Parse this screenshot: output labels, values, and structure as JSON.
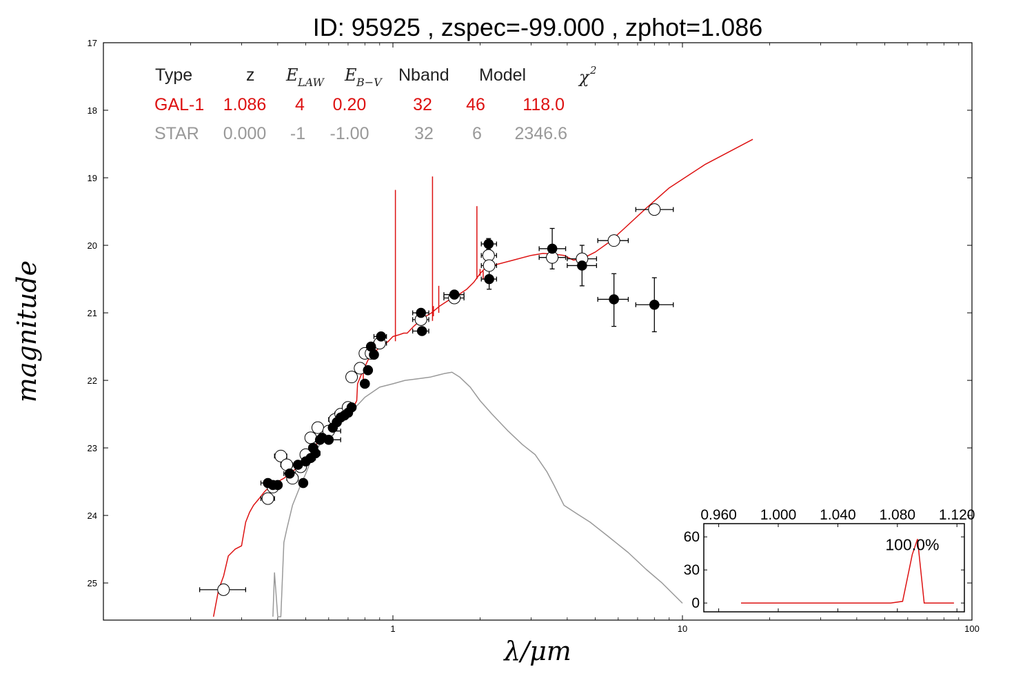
{
  "title": "ID:  95925 , zspec=-99.000 , zphot=1.086",
  "colors": {
    "galaxy": "#dd1111",
    "star": "#999999",
    "axis": "#000000"
  },
  "chart_data": [
    {
      "type": "scatter",
      "x_scale": "log",
      "y_inverted": true,
      "xlabel": "λ/μm",
      "ylabel": "magnitude",
      "xlim": [
        0.1,
        100
      ],
      "ylim": [
        25.55,
        17
      ],
      "x_ticks": [
        {
          "v": 1,
          "label": "1"
        },
        {
          "v": 10,
          "label": "10"
        },
        {
          "v": 100,
          "label": "100"
        }
      ],
      "y_ticks": [
        {
          "v": 17,
          "label": "17"
        },
        {
          "v": 18,
          "label": "18"
        },
        {
          "v": 19,
          "label": "19"
        },
        {
          "v": 20,
          "label": "20"
        },
        {
          "v": 21,
          "label": "21"
        },
        {
          "v": 22,
          "label": "22"
        },
        {
          "v": 23,
          "label": "23"
        },
        {
          "v": 24,
          "label": "24"
        },
        {
          "v": 25,
          "label": "25"
        }
      ],
      "table": {
        "headers": [
          "Type",
          "z",
          "E_LAW",
          "E_B−V",
          "Nband",
          "Model",
          "χ²"
        ],
        "rows": [
          {
            "kind": "galaxy",
            "cells": [
              "GAL-1",
              "1.086",
              "4",
              "0.20",
              "32",
              "46",
              "118.0"
            ]
          },
          {
            "kind": "star",
            "cells": [
              "STAR",
              "0.000",
              "-1",
              "-1.00",
              "32",
              "6",
              "2346.6"
            ]
          }
        ]
      },
      "series": [
        {
          "role": "galaxy-model",
          "style": "line",
          "x": [
            0.24,
            0.25,
            0.26,
            0.27,
            0.285,
            0.3,
            0.31,
            0.32,
            0.33,
            0.345,
            0.36,
            0.37,
            0.38,
            0.4,
            0.42,
            0.45,
            0.48,
            0.5,
            0.53,
            0.56,
            0.6,
            0.64,
            0.68,
            0.72,
            0.75,
            0.755,
            0.78,
            0.82,
            0.85,
            0.88,
            0.92,
            0.96,
            1.0,
            1.04,
            1.09,
            1.12,
            1.18,
            1.24,
            1.3,
            1.36,
            1.45,
            1.55,
            1.62,
            1.7,
            1.8,
            1.9,
            2.0,
            2.1,
            2.3,
            2.6,
            3.0,
            3.3,
            3.6,
            3.9,
            4.2,
            4.5,
            5.0,
            5.6,
            6.3,
            7.5,
            9.0,
            12.0,
            17.5
          ],
          "y": [
            25.5,
            25.1,
            24.9,
            24.6,
            24.5,
            24.45,
            24.1,
            23.95,
            23.85,
            23.75,
            23.65,
            23.6,
            23.55,
            23.5,
            23.45,
            23.35,
            23.25,
            23.15,
            23.0,
            22.88,
            22.75,
            22.62,
            22.5,
            22.45,
            22.3,
            22.05,
            21.9,
            21.7,
            21.6,
            21.55,
            21.47,
            21.43,
            21.35,
            21.33,
            21.3,
            21.3,
            21.2,
            21.12,
            21.05,
            21.0,
            20.9,
            20.82,
            20.78,
            20.72,
            20.65,
            20.55,
            20.42,
            20.32,
            20.28,
            20.22,
            20.15,
            20.12,
            20.13,
            20.15,
            20.22,
            20.2,
            20.1,
            19.95,
            19.75,
            19.45,
            19.15,
            18.8,
            18.43
          ]
        },
        {
          "role": "galaxy-emission-lines",
          "style": "spikes",
          "x": [
            0.79,
            1.02,
            1.27,
            1.37,
            1.38,
            1.44,
            1.95,
            2.0,
            2.05
          ],
          "y_top": [
            21.85,
            19.18,
            21.2,
            18.98,
            20.9,
            20.6,
            19.42,
            20.35,
            20.5
          ],
          "y_base": [
            22.05,
            21.42,
            21.32,
            21.12,
            21.05,
            21.0,
            20.5,
            20.45,
            20.38
          ]
        },
        {
          "role": "star-model",
          "style": "line",
          "x": [
            0.385,
            0.39,
            0.4,
            0.41,
            0.42,
            0.43,
            0.45,
            0.48,
            0.5,
            0.53,
            0.56,
            0.6,
            0.65,
            0.7,
            0.75,
            0.8,
            0.9,
            1.0,
            1.1,
            1.2,
            1.35,
            1.5,
            1.6,
            1.7,
            1.85,
            2.0,
            2.2,
            2.5,
            2.8,
            3.1,
            3.4,
            3.6,
            3.9,
            4.3,
            4.8,
            5.5,
            6.5,
            7.5,
            8.5,
            10.0
          ],
          "y": [
            25.5,
            24.85,
            25.5,
            25.5,
            24.4,
            24.2,
            23.85,
            23.55,
            23.38,
            23.1,
            22.95,
            22.8,
            22.65,
            22.5,
            22.38,
            22.25,
            22.1,
            22.05,
            22.0,
            21.98,
            21.95,
            21.9,
            21.88,
            21.95,
            22.1,
            22.3,
            22.5,
            22.75,
            22.95,
            23.1,
            23.35,
            23.55,
            23.85,
            23.97,
            24.1,
            24.3,
            24.55,
            24.8,
            25.0,
            25.3
          ]
        },
        {
          "role": "model-magnitudes",
          "style": "open-circle",
          "x": [
            0.26,
            0.37,
            0.385,
            0.41,
            0.43,
            0.45,
            0.48,
            0.5,
            0.52,
            0.55,
            0.6,
            0.63,
            0.66,
            0.7,
            0.72,
            0.77,
            0.8,
            0.84,
            0.9,
            1.25,
            1.63,
            2.14,
            2.15,
            3.55,
            4.5,
            5.8,
            8.0
          ],
          "y": [
            25.1,
            23.75,
            23.58,
            23.12,
            23.25,
            23.45,
            23.28,
            23.1,
            22.85,
            22.7,
            22.75,
            22.58,
            22.5,
            22.4,
            21.95,
            21.82,
            21.6,
            21.6,
            21.45,
            21.1,
            20.78,
            20.15,
            20.3,
            20.18,
            20.2,
            19.93,
            19.47
          ],
          "x_err": [
            [
              0.215,
              0.31
            ],
            [
              0.35,
              0.39
            ],
            [
              0.38,
              0.39
            ],
            [
              0.39,
              0.43
            ],
            [
              0.41,
              0.45
            ],
            [
              0.43,
              0.47
            ],
            [
              0.46,
              0.5
            ],
            [
              0.49,
              0.52
            ],
            [
              0.5,
              0.54
            ],
            [
              0.53,
              0.57
            ],
            [
              0.54,
              0.66
            ],
            [
              0.6,
              0.66
            ],
            [
              0.63,
              0.69
            ],
            [
              0.68,
              0.73
            ],
            [
              0.7,
              0.74
            ],
            [
              0.75,
              0.79
            ],
            [
              0.78,
              0.82
            ],
            [
              0.82,
              0.86
            ],
            [
              0.86,
              0.95
            ],
            [
              1.17,
              1.33
            ],
            [
              1.5,
              1.76
            ],
            [
              2.02,
              2.28
            ],
            [
              2.02,
              2.28
            ],
            [
              3.2,
              3.95
            ],
            [
              4.0,
              5.05
            ],
            [
              5.1,
              6.5
            ],
            [
              6.9,
              9.3
            ]
          ]
        },
        {
          "role": "observed-magnitudes",
          "style": "filled-circle",
          "x": [
            0.37,
            0.385,
            0.4,
            0.44,
            0.47,
            0.49,
            0.5,
            0.52,
            0.53,
            0.54,
            0.56,
            0.57,
            0.6,
            0.62,
            0.64,
            0.66,
            0.68,
            0.7,
            0.72,
            0.8,
            0.82,
            0.84,
            0.86,
            0.91,
            1.25,
            1.26,
            1.63,
            2.14,
            2.15,
            3.55,
            4.5,
            5.8,
            8.0
          ],
          "y": [
            23.52,
            23.55,
            23.55,
            23.38,
            23.25,
            23.52,
            23.2,
            23.15,
            23.0,
            23.08,
            22.88,
            22.85,
            22.88,
            22.7,
            22.62,
            22.55,
            22.52,
            22.48,
            22.4,
            22.05,
            21.85,
            21.5,
            21.62,
            21.35,
            21.0,
            21.27,
            20.73,
            19.98,
            20.5,
            20.05,
            20.3,
            20.8,
            20.88
          ],
          "x_err": [
            [
              0.35,
              0.39
            ],
            [
              0.38,
              0.39
            ],
            [
              0.39,
              0.41
            ],
            [
              0.42,
              0.46
            ],
            [
              0.46,
              0.49
            ],
            [
              0.48,
              0.5
            ],
            [
              0.49,
              0.51
            ],
            [
              0.5,
              0.54
            ],
            [
              0.52,
              0.55
            ],
            [
              0.53,
              0.56
            ],
            [
              0.55,
              0.58
            ],
            [
              0.56,
              0.58
            ],
            [
              0.54,
              0.66
            ],
            [
              0.6,
              0.64
            ],
            [
              0.63,
              0.66
            ],
            [
              0.64,
              0.68
            ],
            [
              0.66,
              0.7
            ],
            [
              0.68,
              0.72
            ],
            [
              0.7,
              0.74
            ],
            [
              0.78,
              0.82
            ],
            [
              0.8,
              0.84
            ],
            [
              0.82,
              0.86
            ],
            [
              0.84,
              0.88
            ],
            [
              0.86,
              0.95
            ],
            [
              1.17,
              1.33
            ],
            [
              1.17,
              1.33
            ],
            [
              1.5,
              1.76
            ],
            [
              2.02,
              2.28
            ],
            [
              2.02,
              2.28
            ],
            [
              3.2,
              3.95
            ],
            [
              4.0,
              5.05
            ],
            [
              5.1,
              6.5
            ],
            [
              6.9,
              9.3
            ]
          ],
          "y_err": [
            [
              23.52,
              23.52
            ],
            [
              23.55,
              23.55
            ],
            [
              23.55,
              23.55
            ],
            [
              23.38,
              23.38
            ],
            [
              23.25,
              23.25
            ],
            [
              23.52,
              23.52
            ],
            [
              23.2,
              23.2
            ],
            [
              23.15,
              23.15
            ],
            [
              23.0,
              23.0
            ],
            [
              23.08,
              23.08
            ],
            [
              22.88,
              22.88
            ],
            [
              22.85,
              22.85
            ],
            [
              22.88,
              22.88
            ],
            [
              22.7,
              22.7
            ],
            [
              22.62,
              22.62
            ],
            [
              22.55,
              22.55
            ],
            [
              22.52,
              22.52
            ],
            [
              22.48,
              22.48
            ],
            [
              22.4,
              22.4
            ],
            [
              22.05,
              22.05
            ],
            [
              21.85,
              21.85
            ],
            [
              21.5,
              21.5
            ],
            [
              21.62,
              21.62
            ],
            [
              21.35,
              21.35
            ],
            [
              21.0,
              21.0
            ],
            [
              21.27,
              21.27
            ],
            [
              20.73,
              20.73
            ],
            [
              19.9,
              20.06
            ],
            [
              20.35,
              20.65
            ],
            [
              19.75,
              20.35
            ],
            [
              20.0,
              20.6
            ],
            [
              20.42,
              21.2
            ],
            [
              20.48,
              21.28
            ]
          ]
        }
      ]
    },
    {
      "type": "line",
      "xlim": [
        0.95,
        1.125
      ],
      "ylim": [
        -8,
        72
      ],
      "x_ticks": [
        {
          "v": 0.96,
          "label": "0.960"
        },
        {
          "v": 1.0,
          "label": "1.000"
        },
        {
          "v": 1.04,
          "label": "1.040"
        },
        {
          "v": 1.08,
          "label": "1.080"
        },
        {
          "v": 1.12,
          "label": "1.120"
        }
      ],
      "y_ticks": [
        {
          "v": 0,
          "label": "0"
        },
        {
          "v": 30,
          "label": "30"
        },
        {
          "v": 60,
          "label": "60"
        }
      ],
      "annotation": "100.0%",
      "annotation_x": 1.09,
      "annotation_y": 48,
      "x": [
        0.975,
        1.04,
        1.0755,
        1.0835,
        1.09,
        1.0935,
        1.098,
        1.118
      ],
      "y": [
        0,
        0,
        0,
        1.5,
        44,
        58,
        0,
        0
      ]
    }
  ]
}
